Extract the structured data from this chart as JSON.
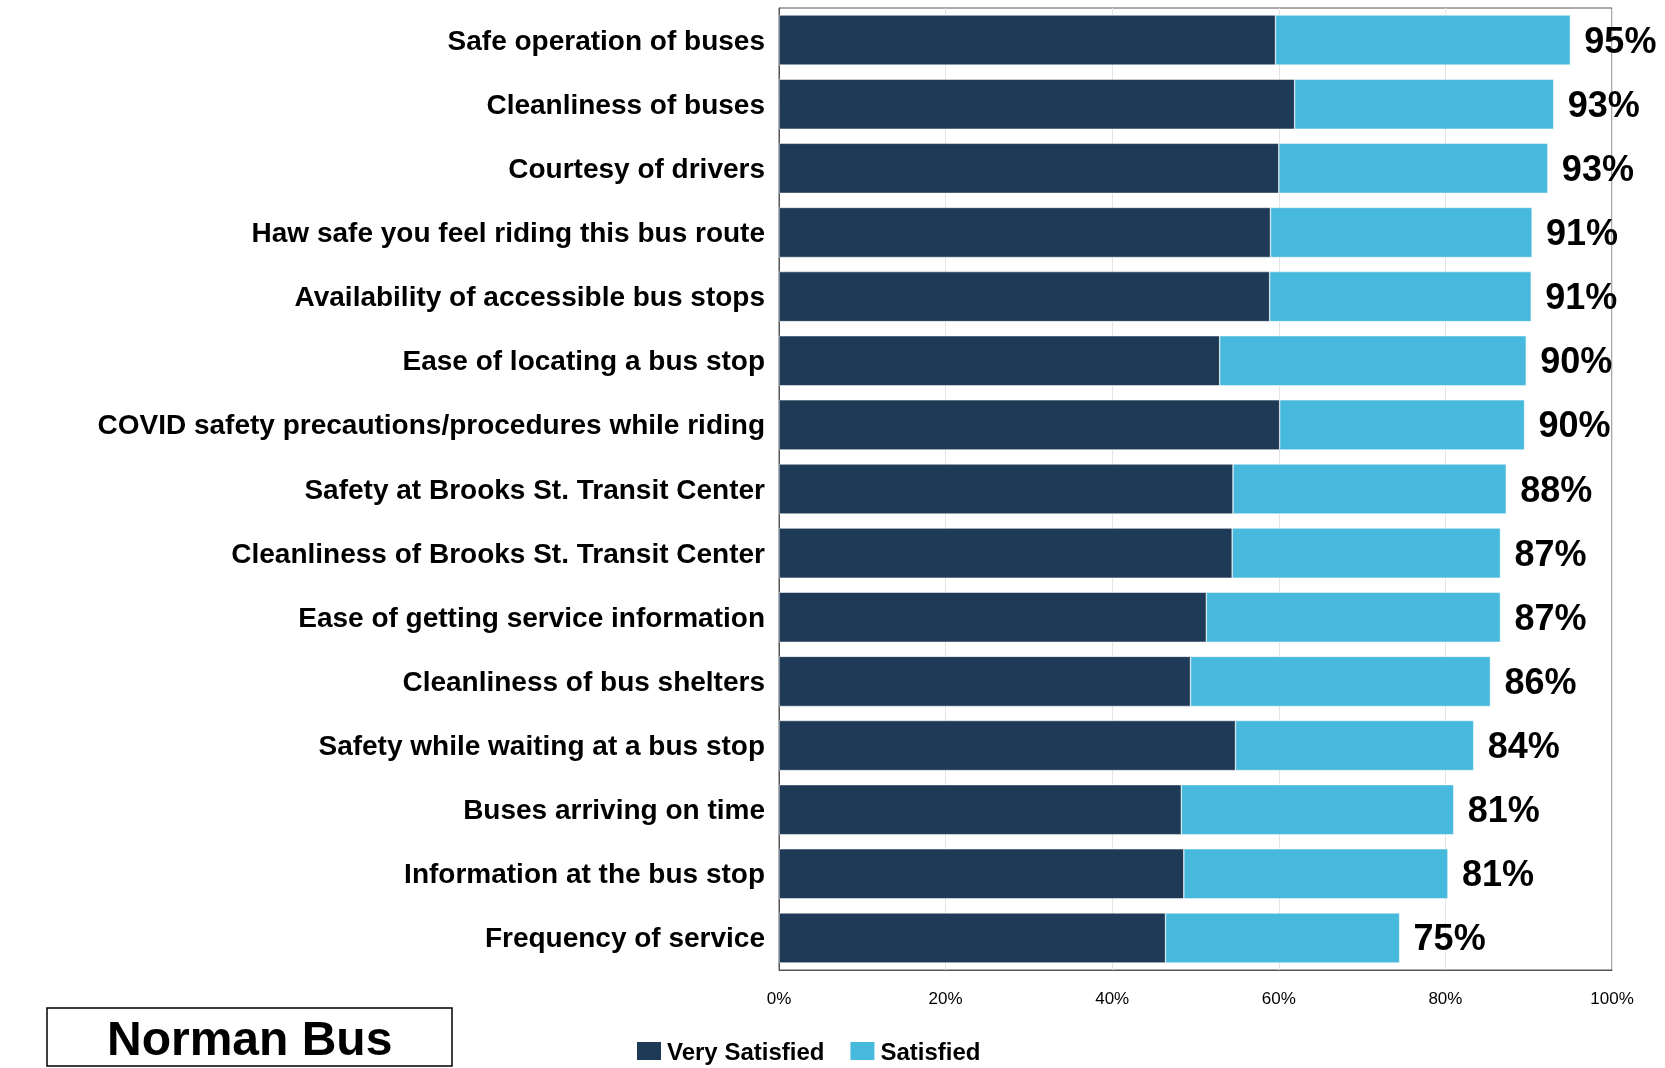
{
  "chart_data": {
    "type": "bar",
    "orientation": "horizontal",
    "stacked": true,
    "title": "Norman Bus",
    "categories": [
      "Safe operation of buses",
      "Cleanliness of buses",
      "Courtesy of drivers",
      "Haw safe you feel riding this bus route",
      "Availability of accessible bus stops",
      "Ease of locating a bus stop",
      "COVID safety precautions/procedures while riding",
      "Safety at Brooks St. Transit Center",
      "Cleanliness of Brooks St. Transit Center",
      "Ease of getting service information",
      "Cleanliness of bus shelters",
      "Safety while waiting at a bus stop",
      "Buses arriving on time",
      "Information at the bus stop",
      "Frequency of service"
    ],
    "series": [
      {
        "name": "Very Satisfied",
        "color": "#1f3a56",
        "values": [
          59.6,
          61.9,
          60.0,
          59.0,
          58.9,
          52.9,
          60.1,
          54.5,
          54.4,
          51.3,
          49.4,
          54.8,
          48.3,
          48.6,
          46.4
        ]
      },
      {
        "name": "Satisfied",
        "color": "#47b9dc",
        "values": [
          35.4,
          31.1,
          32.3,
          31.4,
          31.4,
          36.8,
          29.4,
          32.8,
          32.2,
          35.3,
          36.0,
          28.6,
          32.7,
          31.7,
          28.1
        ]
      }
    ],
    "totals": [
      "95%",
      "93%",
      "93%",
      "91%",
      "91%",
      "90%",
      "90%",
      "88%",
      "87%",
      "87%",
      "86%",
      "84%",
      "81%",
      "81%",
      "75%"
    ],
    "xlim": [
      0,
      100
    ],
    "xticks": [
      {
        "value": 0,
        "label": "0%"
      },
      {
        "value": 20,
        "label": "20%"
      },
      {
        "value": 40,
        "label": "40%"
      },
      {
        "value": 60,
        "label": "60%"
      },
      {
        "value": 80,
        "label": "80%"
      },
      {
        "value": 100,
        "label": "100%"
      }
    ],
    "grid": "x",
    "legend": "bottom"
  }
}
